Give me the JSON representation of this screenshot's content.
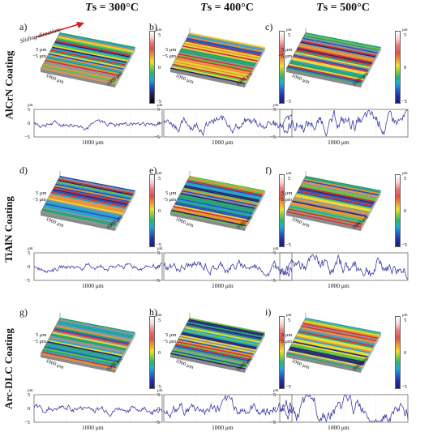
{
  "columns": [
    {
      "sym": "T",
      "sub": "s",
      "rest": " = 300°C"
    },
    {
      "sym": "T",
      "sub": "s",
      "rest": " = 400°C"
    },
    {
      "sym": "T",
      "sub": "s",
      "rest": " = 500°C"
    }
  ],
  "rows": [
    {
      "label": "AlCrN Coating"
    },
    {
      "label": "TiAlN Coating"
    },
    {
      "label": "Arc-DLC Coating"
    }
  ],
  "panel_labels": [
    "a)",
    "b)",
    "c)",
    "d)",
    "e)",
    "f)",
    "g)",
    "h)",
    "i)"
  ],
  "sliding_direction": "Sliding direction",
  "axis": {
    "z_top": "5 μm",
    "z_bottom": "−5 μm",
    "xy": "1000 μm",
    "profile_unit": "μm",
    "profile_top": "5",
    "profile_mid": "0",
    "profile_bot": "−5",
    "profile_x": "1000 μm"
  },
  "colorbar": {
    "unit": "μm",
    "top": "5",
    "mid": "0",
    "bot": "−5"
  },
  "colors": {
    "profile_line": "#3c3ca8",
    "stripes": [
      "#d03030",
      "#e89030",
      "#e8d830",
      "#60c040",
      "#20a070",
      "#20a0c8",
      "#2050b8",
      "#202870",
      "#909090"
    ]
  }
}
